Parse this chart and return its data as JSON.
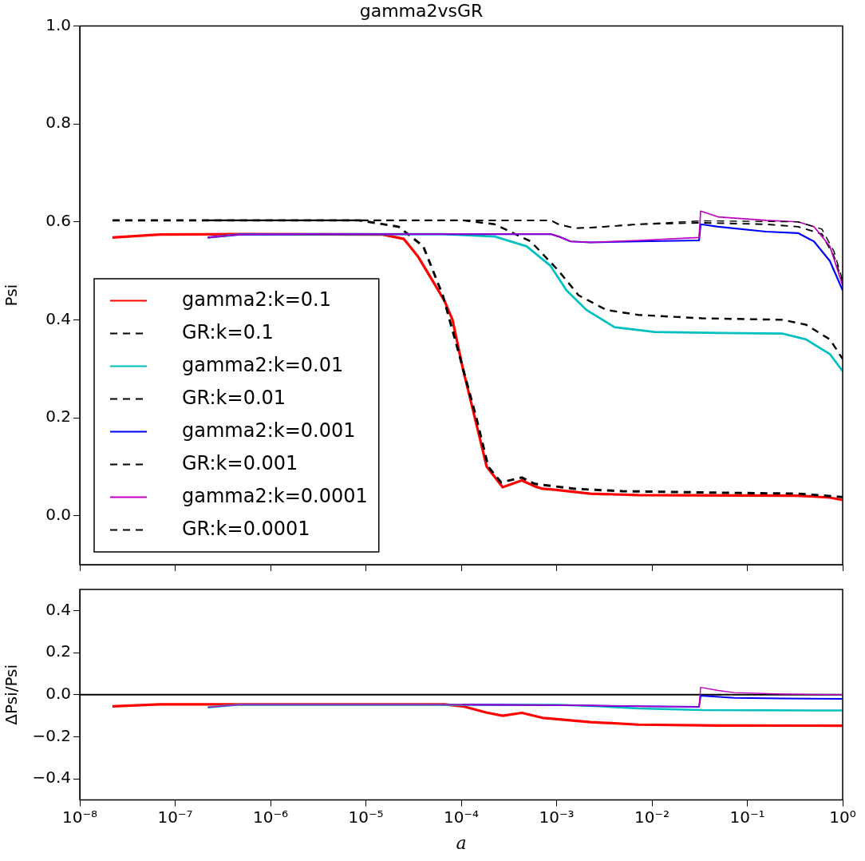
{
  "chart_data": [
    {
      "type": "line",
      "title": "gamma2vsGR",
      "ylabel": "Psi",
      "log": "x",
      "grid": false,
      "legend": "bottom left",
      "tick_labels": "y",
      "xlim": [
        1e-08,
        1
      ],
      "xticks": [
        {
          "value": 1e-08,
          "label": null
        },
        {
          "value": 1e-07,
          "label": null
        },
        {
          "value": 1e-06,
          "label": null
        },
        {
          "value": 1e-05,
          "label": null
        },
        {
          "value": 0.0001,
          "label": null
        },
        {
          "value": 0.001,
          "label": null
        },
        {
          "value": 0.01,
          "label": null
        },
        {
          "value": 0.1,
          "label": null
        },
        {
          "value": 1,
          "label": null
        }
      ],
      "ylim": [
        -0.1,
        1.0
      ],
      "yticks": [
        {
          "value": 0,
          "label": "0.0"
        },
        {
          "value": 0.2,
          "label": "0.2"
        },
        {
          "value": 0.4,
          "label": "0.4"
        },
        {
          "value": 0.6,
          "label": "0.6"
        },
        {
          "value": 0.8,
          "label": "0.8"
        },
        {
          "value": 1.0,
          "label": "1.0"
        }
      ],
      "series": [
        {
          "name": "gamma2:k=0.1",
          "color": "#ff0000",
          "line_style": "solid",
          "x": [
            2.2e-08,
            6.9e-08,
            4.7e-07,
            1.5e-05,
            2.5e-05,
            3.5e-05,
            5e-05,
            6.7e-05,
            8.1e-05,
            0.000104,
            0.000139,
            0.000185,
            0.000272,
            0.000432,
            0.000589,
            0.000714,
            0.00095,
            0.00227,
            0.0072,
            0.34,
            0.734,
            1
          ],
          "values": [
            0.568,
            0.574,
            0.575,
            0.574,
            0.565,
            0.53,
            0.48,
            0.438,
            0.4,
            0.3,
            0.2,
            0.1,
            0.058,
            0.072,
            0.06,
            0.055,
            0.053,
            0.045,
            0.042,
            0.041,
            0.037,
            0.032
          ]
        },
        {
          "name": "GR:k=0.1",
          "color": "#000000",
          "line_style": "dashed",
          "x": [
            2.2e-08,
            8.5e-06,
            2.2e-05,
            4e-05,
            6.4e-05,
            8.9e-05,
            0.000144,
            0.000192,
            0.000262,
            0.000432,
            0.000589,
            0.00154,
            0.0049,
            0.0495,
            0.34,
            1
          ],
          "values": [
            0.603,
            0.603,
            0.59,
            0.55,
            0.45,
            0.35,
            0.2,
            0.1,
            0.068,
            0.078,
            0.065,
            0.055,
            0.05,
            0.047,
            0.045,
            0.038
          ]
        },
        {
          "name": "gamma2:k=0.01",
          "color": "#00bfbf",
          "line_style": "solid",
          "x": [
            2.2e-07,
            4.7e-07,
            3.2e-06,
            6.4e-05,
            0.000224,
            0.000485,
            0.000865,
            0.00127,
            0.00206,
            0.00405,
            0.0106,
            0.0495,
            0.231,
            0.412,
            0.734,
            1
          ],
          "values": [
            0.568,
            0.574,
            0.575,
            0.575,
            0.57,
            0.55,
            0.51,
            0.46,
            0.42,
            0.385,
            0.375,
            0.373,
            0.372,
            0.36,
            0.33,
            0.295
          ]
        },
        {
          "name": "GR:k=0.01",
          "color": "#000000",
          "line_style": "dashed",
          "x": [
            2.2e-07,
            0.000104,
            0.000224,
            0.000535,
            0.00105,
            0.0017,
            0.00333,
            0.0072,
            0.0336,
            0.231,
            0.412,
            0.734,
            1
          ],
          "values": [
            0.603,
            0.603,
            0.595,
            0.56,
            0.5,
            0.45,
            0.42,
            0.41,
            0.403,
            0.4,
            0.39,
            0.36,
            0.32
          ]
        },
        {
          "name": "gamma2:k=0.001",
          "color": "#0000ff",
          "line_style": "solid",
          "x": [
            2.2e-07,
            4.7e-07,
            3.2e-06,
            0.000865,
            0.00105,
            0.0014,
            0.00227,
            0.0072,
            0.0312,
            0.0324,
            0.0495,
            0.157,
            0.34,
            0.5,
            0.734,
            1
          ],
          "values": [
            0.568,
            0.574,
            0.575,
            0.575,
            0.57,
            0.56,
            0.558,
            0.56,
            0.562,
            0.595,
            0.59,
            0.58,
            0.577,
            0.56,
            0.52,
            0.46
          ]
        },
        {
          "name": "GR:k=0.001",
          "color": "#000000",
          "line_style": "dashed",
          "x": [
            2.2e-07,
            0.000865,
            0.00105,
            0.00154,
            0.00227,
            0.0072,
            0.0336,
            0.157,
            0.34,
            0.606,
            0.809,
            1
          ],
          "values": [
            0.603,
            0.603,
            0.595,
            0.587,
            0.588,
            0.595,
            0.598,
            0.595,
            0.59,
            0.575,
            0.53,
            0.475
          ]
        },
        {
          "name": "gamma2:k=0.0001",
          "color": "#bf00bf",
          "line_style": "solid",
          "x": [
            2.2e-07,
            4.7e-07,
            3.2e-06,
            0.000865,
            0.00105,
            0.0014,
            0.00227,
            0.0072,
            0.0312,
            0.0324,
            0.0495,
            0.157,
            0.34,
            0.5,
            0.734,
            1
          ],
          "values": [
            0.568,
            0.574,
            0.575,
            0.575,
            0.57,
            0.56,
            0.558,
            0.562,
            0.568,
            0.622,
            0.61,
            0.603,
            0.6,
            0.59,
            0.55,
            0.47
          ]
        },
        {
          "name": "GR:k=0.0001",
          "color": "#000000",
          "line_style": "dashed",
          "x": [
            2.2e-07,
            0.000865,
            0.00105,
            0.00154,
            0.00227,
            0.0072,
            0.0336,
            0.34,
            0.606,
            0.809,
            1
          ],
          "values": [
            0.603,
            0.603,
            0.595,
            0.587,
            0.588,
            0.595,
            0.602,
            0.6,
            0.585,
            0.54,
            0.48
          ]
        }
      ]
    },
    {
      "type": "line",
      "xlabel": "a",
      "ylabel": "ΔPsi/Psi",
      "log": "x",
      "grid": false,
      "xlim": [
        1e-08,
        1
      ],
      "xticks": [
        {
          "value": 1e-08,
          "label": "10⁻⁸"
        },
        {
          "value": 1e-07,
          "label": "10⁻⁷"
        },
        {
          "value": 1e-06,
          "label": "10⁻⁶"
        },
        {
          "value": 1e-05,
          "label": "10⁻⁵"
        },
        {
          "value": 0.0001,
          "label": "10⁻⁴"
        },
        {
          "value": 0.001,
          "label": "10⁻³"
        },
        {
          "value": 0.01,
          "label": "10⁻²"
        },
        {
          "value": 0.1,
          "label": "10⁻¹"
        },
        {
          "value": 1,
          "label": "10⁰"
        }
      ],
      "ylim": [
        -0.5,
        0.5
      ],
      "yticks": [
        {
          "value": -0.4,
          "label": "−0.4"
        },
        {
          "value": -0.2,
          "label": "−0.2"
        },
        {
          "value": 0,
          "label": "0.0"
        },
        {
          "value": 0.2,
          "label": "0.2"
        },
        {
          "value": 0.4,
          "label": "0.4"
        }
      ],
      "ref_lines": [
        {
          "axis": "y",
          "value": 0,
          "color": "#000000"
        }
      ],
      "series": [
        {
          "color": "#ff0000",
          "x": [
            2.2e-08,
            6.9e-08,
            6.7e-05,
            0.000104,
            0.000185,
            0.000272,
            0.000432,
            0.000714,
            0.00095,
            0.00227,
            0.0072,
            0.0495,
            1
          ],
          "values": [
            -0.055,
            -0.046,
            -0.046,
            -0.055,
            -0.085,
            -0.1,
            -0.086,
            -0.11,
            -0.115,
            -0.13,
            -0.142,
            -0.146,
            -0.147
          ]
        },
        {
          "color": "#00bfbf",
          "x": [
            2.2e-07,
            4.7e-07,
            0.00105,
            0.00275,
            0.0072,
            0.0336,
            1
          ],
          "values": [
            -0.06,
            -0.047,
            -0.048,
            -0.055,
            -0.065,
            -0.073,
            -0.075
          ]
        },
        {
          "color": "#0000ff",
          "x": [
            0.000104,
            0.00154,
            0.0072,
            0.0312,
            0.0324,
            0.073,
            0.231,
            1
          ],
          "values": [
            -0.047,
            -0.05,
            -0.055,
            -0.058,
            -0.005,
            -0.015,
            -0.018,
            -0.02
          ]
        },
        {
          "color": "#bf00bf",
          "x": [
            2.2e-07,
            4.7e-07,
            0.000104,
            0.00154,
            0.0072,
            0.0312,
            0.0324,
            0.0495,
            0.073,
            0.231,
            1
          ],
          "values": [
            -0.06,
            -0.047,
            -0.047,
            -0.05,
            -0.055,
            -0.058,
            0.035,
            0.02,
            0.01,
            0.003,
            0.0
          ]
        }
      ]
    }
  ]
}
